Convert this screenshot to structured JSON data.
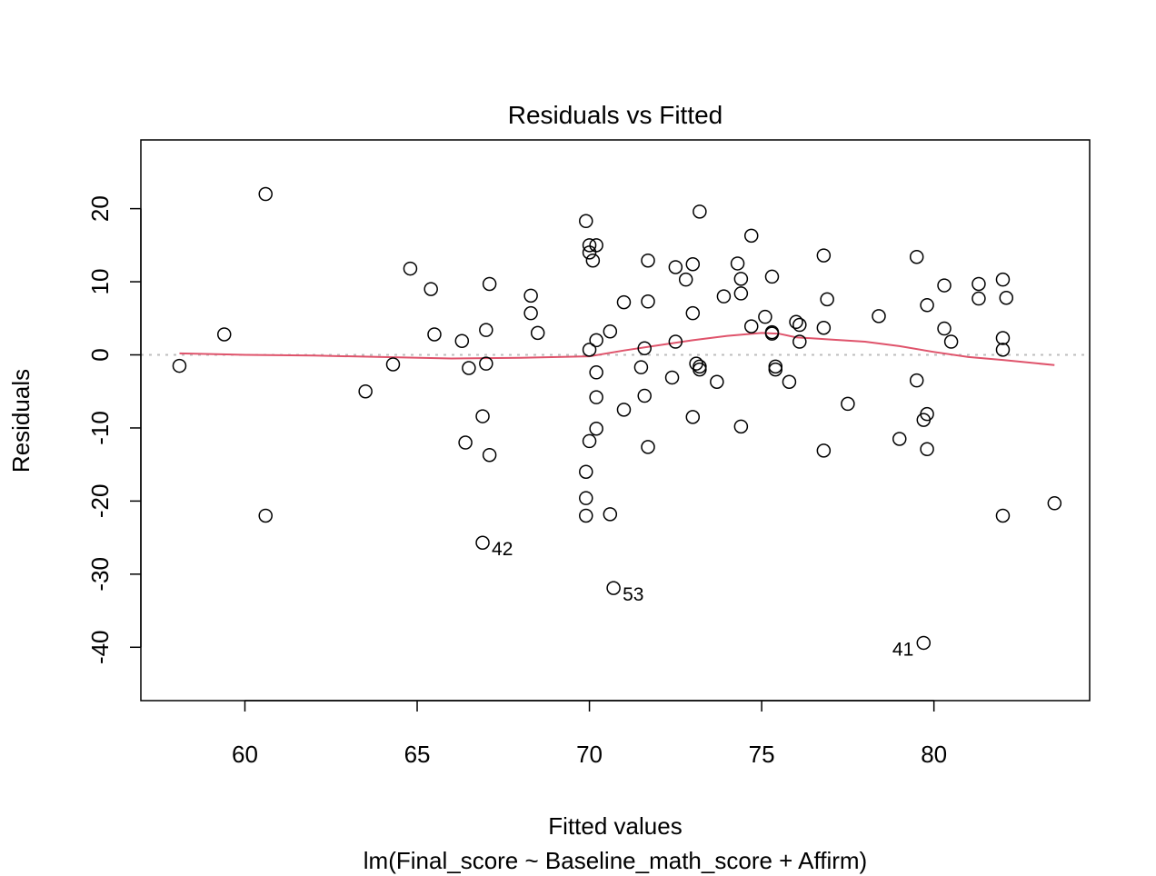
{
  "chart_data": {
    "type": "scatter",
    "title": "Residuals vs Fitted",
    "xlabel": "Fitted values",
    "subtitle": "lm(Final_score ~ Baseline_math_score + Affirm)",
    "ylabel": "Residuals",
    "xlim": [
      56.98,
      84.52
    ],
    "ylim": [
      -47.3,
      29.4
    ],
    "xticks": [
      60,
      65,
      70,
      75,
      80
    ],
    "yticks": [
      -40,
      -30,
      -20,
      -10,
      0,
      10,
      20
    ],
    "grid": false,
    "zero_line": true,
    "colors": {
      "points": "#000000",
      "smooth": "#DF536B",
      "zero_line": "#BEBEBE",
      "frame": "#000000"
    },
    "points": [
      {
        "x": 58.1,
        "y": -1.5
      },
      {
        "x": 59.4,
        "y": 2.8
      },
      {
        "x": 60.6,
        "y": 22.0
      },
      {
        "x": 60.6,
        "y": -22.0
      },
      {
        "x": 63.5,
        "y": -5.0
      },
      {
        "x": 64.3,
        "y": -1.3
      },
      {
        "x": 64.8,
        "y": 11.8
      },
      {
        "x": 65.4,
        "y": 9.0
      },
      {
        "x": 65.5,
        "y": 2.8
      },
      {
        "x": 66.3,
        "y": 1.9
      },
      {
        "x": 66.4,
        "y": -12.0
      },
      {
        "x": 66.5,
        "y": -1.8
      },
      {
        "x": 66.9,
        "y": -8.4
      },
      {
        "x": 66.9,
        "y": -25.7,
        "label": "42"
      },
      {
        "x": 67.0,
        "y": -1.2
      },
      {
        "x": 67.0,
        "y": 3.4
      },
      {
        "x": 67.1,
        "y": 9.7
      },
      {
        "x": 67.1,
        "y": -13.7
      },
      {
        "x": 68.3,
        "y": 8.1
      },
      {
        "x": 68.3,
        "y": 5.7
      },
      {
        "x": 68.5,
        "y": 3.0
      },
      {
        "x": 69.9,
        "y": 18.3
      },
      {
        "x": 69.9,
        "y": -16.0
      },
      {
        "x": 69.9,
        "y": -19.6
      },
      {
        "x": 69.9,
        "y": -22.0
      },
      {
        "x": 70.0,
        "y": 15.0
      },
      {
        "x": 70.0,
        "y": 14.0
      },
      {
        "x": 70.0,
        "y": 0.7
      },
      {
        "x": 70.0,
        "y": -11.8
      },
      {
        "x": 70.1,
        "y": 12.9
      },
      {
        "x": 70.2,
        "y": 15.0
      },
      {
        "x": 70.2,
        "y": 2.0
      },
      {
        "x": 70.2,
        "y": -2.4
      },
      {
        "x": 70.2,
        "y": -5.8
      },
      {
        "x": 70.2,
        "y": -10.1
      },
      {
        "x": 70.6,
        "y": 3.2
      },
      {
        "x": 70.6,
        "y": -21.8
      },
      {
        "x": 70.7,
        "y": -31.9,
        "label": "53"
      },
      {
        "x": 71.0,
        "y": 7.2
      },
      {
        "x": 71.0,
        "y": -7.5
      },
      {
        "x": 71.5,
        "y": -1.7
      },
      {
        "x": 71.6,
        "y": 0.9
      },
      {
        "x": 71.6,
        "y": -5.6
      },
      {
        "x": 71.7,
        "y": 12.9
      },
      {
        "x": 71.7,
        "y": 7.3
      },
      {
        "x": 71.7,
        "y": -12.6
      },
      {
        "x": 72.4,
        "y": -3.1
      },
      {
        "x": 72.5,
        "y": 12.0
      },
      {
        "x": 72.5,
        "y": 1.8
      },
      {
        "x": 72.8,
        "y": 10.3
      },
      {
        "x": 73.0,
        "y": 12.4
      },
      {
        "x": 73.0,
        "y": 5.7
      },
      {
        "x": 73.0,
        "y": -8.5
      },
      {
        "x": 73.1,
        "y": -1.2
      },
      {
        "x": 73.2,
        "y": -1.6
      },
      {
        "x": 73.2,
        "y": -2.0
      },
      {
        "x": 73.2,
        "y": 19.6
      },
      {
        "x": 73.7,
        "y": -3.7
      },
      {
        "x": 73.9,
        "y": 8.0
      },
      {
        "x": 74.3,
        "y": 12.5
      },
      {
        "x": 74.4,
        "y": 10.4
      },
      {
        "x": 74.4,
        "y": 8.4
      },
      {
        "x": 74.4,
        "y": -9.8
      },
      {
        "x": 74.7,
        "y": 16.3
      },
      {
        "x": 74.7,
        "y": 3.9
      },
      {
        "x": 75.1,
        "y": 5.2
      },
      {
        "x": 75.3,
        "y": 10.7
      },
      {
        "x": 75.3,
        "y": 3.1
      },
      {
        "x": 75.3,
        "y": 2.9
      },
      {
        "x": 75.4,
        "y": -1.6
      },
      {
        "x": 75.4,
        "y": -2.0
      },
      {
        "x": 75.8,
        "y": -3.7
      },
      {
        "x": 76.0,
        "y": 4.5
      },
      {
        "x": 76.1,
        "y": 4.1
      },
      {
        "x": 76.1,
        "y": 1.8
      },
      {
        "x": 76.8,
        "y": 13.6
      },
      {
        "x": 76.8,
        "y": 3.7
      },
      {
        "x": 76.8,
        "y": -13.1
      },
      {
        "x": 76.9,
        "y": 7.6
      },
      {
        "x": 77.5,
        "y": -6.7
      },
      {
        "x": 78.4,
        "y": 5.3
      },
      {
        "x": 79.0,
        "y": -11.5
      },
      {
        "x": 79.5,
        "y": 13.4
      },
      {
        "x": 79.5,
        "y": -3.5
      },
      {
        "x": 79.7,
        "y": -8.9
      },
      {
        "x": 79.7,
        "y": -39.4,
        "label": "41",
        "label_side": "left"
      },
      {
        "x": 79.8,
        "y": -8.1
      },
      {
        "x": 79.8,
        "y": -12.9
      },
      {
        "x": 79.8,
        "y": 6.8
      },
      {
        "x": 80.3,
        "y": 9.5
      },
      {
        "x": 80.3,
        "y": 3.6
      },
      {
        "x": 80.5,
        "y": 1.8
      },
      {
        "x": 81.3,
        "y": 9.7
      },
      {
        "x": 81.3,
        "y": 7.7
      },
      {
        "x": 82.0,
        "y": 10.3
      },
      {
        "x": 82.0,
        "y": 2.3
      },
      {
        "x": 82.0,
        "y": 0.7
      },
      {
        "x": 82.0,
        "y": -22.0
      },
      {
        "x": 82.1,
        "y": 7.8
      },
      {
        "x": 83.5,
        "y": -20.3
      }
    ],
    "smooth_line": {
      "x": [
        58.1,
        60,
        62,
        64,
        66,
        68,
        70,
        71,
        72,
        73,
        74,
        75,
        75.5,
        76,
        77,
        78,
        79,
        80,
        81,
        82,
        83.5
      ],
      "y": [
        0.2,
        0.0,
        -0.1,
        -0.3,
        -0.5,
        -0.4,
        -0.2,
        0.6,
        1.3,
        2.0,
        2.6,
        3.0,
        2.9,
        2.4,
        2.1,
        1.8,
        1.2,
        0.4,
        -0.3,
        -0.7,
        -1.4
      ]
    }
  }
}
